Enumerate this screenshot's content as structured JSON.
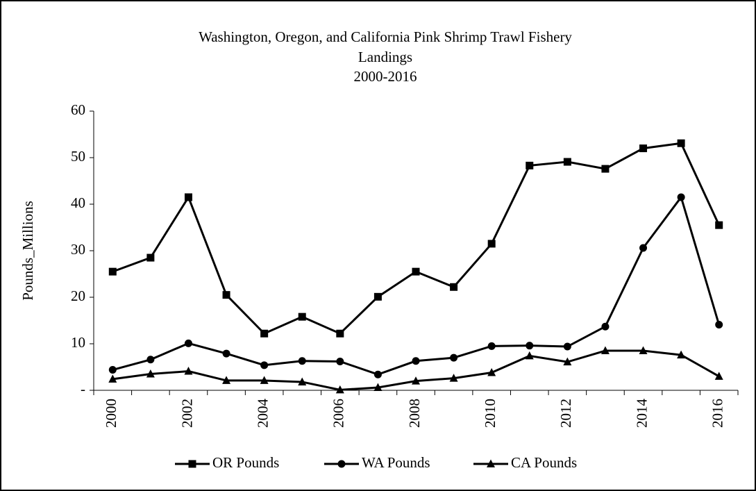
{
  "chart_data": {
    "type": "line",
    "title": [
      "Washington, Oregon, and California  Pink Shrimp Trawl Fishery",
      "Landings",
      "2000-2016"
    ],
    "y_label": "Pounds_Millions",
    "categories": [
      "2000",
      null,
      "2002",
      null,
      "2004",
      null,
      "2006",
      null,
      "2008",
      null,
      "2010",
      null,
      "2012",
      null,
      "2014",
      null,
      "2016"
    ],
    "series": [
      {
        "name": "OR Pounds",
        "color": "#000000",
        "marker": "square",
        "values": [
          25.5,
          28.5,
          41.5,
          20.5,
          12.2,
          15.8,
          12.2,
          20.1,
          25.5,
          22.2,
          31.5,
          48.3,
          49.1,
          47.6,
          52.0,
          53.1,
          35.5
        ]
      },
      {
        "name": "WA Pounds",
        "color": "#000000",
        "marker": "circle",
        "values": [
          4.4,
          6.6,
          10.1,
          7.9,
          5.4,
          6.3,
          6.2,
          3.4,
          6.3,
          7.0,
          9.5,
          9.6,
          9.4,
          13.7,
          30.6,
          41.5,
          14.1
        ]
      },
      {
        "name": "CA Pounds",
        "color": "#000000",
        "marker": "triangle",
        "values": [
          2.4,
          3.5,
          4.1,
          2.1,
          2.1,
          1.8,
          0.1,
          0.6,
          2.0,
          2.6,
          3.8,
          7.4,
          6.1,
          8.5,
          8.5,
          7.6,
          3.0
        ]
      }
    ],
    "ylim": [
      0,
      60
    ],
    "yticks": [
      {
        "value": 0,
        "label": "-"
      },
      10,
      20,
      30,
      40,
      50,
      60
    ],
    "grid": false,
    "legend": "bottom"
  }
}
